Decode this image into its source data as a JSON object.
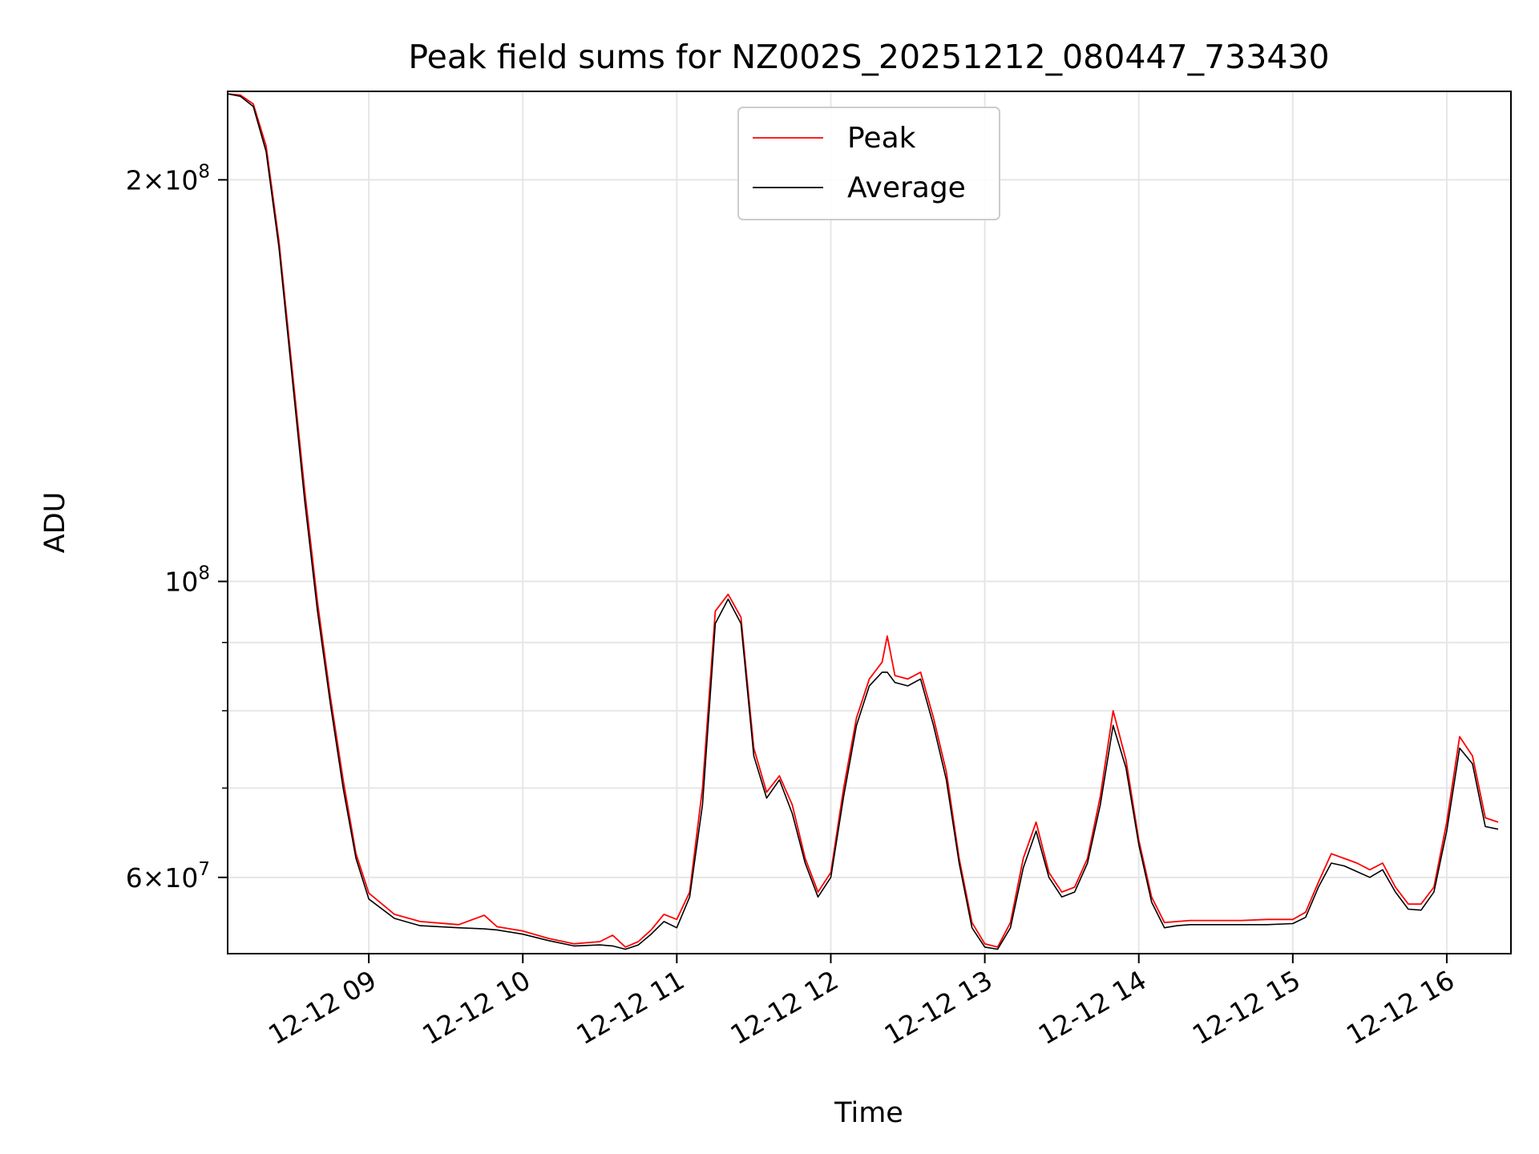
{
  "chart_data": {
    "type": "line",
    "title": "Peak field sums for NZ002S_20251212_080447_733430",
    "xlabel": "Time",
    "ylabel": "ADU",
    "y_scale": "log",
    "x_range": [
      "2025-12-12 08:05",
      "2025-12-12 16:25"
    ],
    "ylim": [
      52600000,
      233000000
    ],
    "grid": true,
    "legend_position": "upper-center",
    "x_ticks": [
      {
        "value": "2025-12-12 09:00",
        "label": "12-12 09"
      },
      {
        "value": "2025-12-12 10:00",
        "label": "12-12 10"
      },
      {
        "value": "2025-12-12 11:00",
        "label": "12-12 11"
      },
      {
        "value": "2025-12-12 12:00",
        "label": "12-12 12"
      },
      {
        "value": "2025-12-12 13:00",
        "label": "12-12 13"
      },
      {
        "value": "2025-12-12 14:00",
        "label": "12-12 14"
      },
      {
        "value": "2025-12-12 15:00",
        "label": "12-12 15"
      },
      {
        "value": "2025-12-12 16:00",
        "label": "12-12 16"
      }
    ],
    "y_major_ticks": [
      {
        "value": 200000000,
        "base": "2",
        "exp": "8"
      },
      {
        "value": 100000000,
        "base": "",
        "exp": "8"
      },
      {
        "value": 60000000,
        "base": "6",
        "exp": "7"
      }
    ],
    "y_minor_ticks": [
      70000000,
      80000000,
      90000000
    ],
    "series": [
      {
        "name": "Peak",
        "color": "#ff0000",
        "points": [
          [
            "2025-12-12 08:05",
            232000000
          ],
          [
            "2025-12-12 08:10",
            231500000
          ],
          [
            "2025-12-12 08:15",
            228000000
          ],
          [
            "2025-12-12 08:20",
            212000000
          ],
          [
            "2025-12-12 08:25",
            180000000
          ],
          [
            "2025-12-12 08:30",
            145000000
          ],
          [
            "2025-12-12 08:35",
            117000000
          ],
          [
            "2025-12-12 08:40",
            96500000
          ],
          [
            "2025-12-12 08:45",
            82000000
          ],
          [
            "2025-12-12 08:50",
            71000000
          ],
          [
            "2025-12-12 08:55",
            62500000
          ],
          [
            "2025-12-12 09:00",
            58400000
          ],
          [
            "2025-12-12 09:10",
            56300000
          ],
          [
            "2025-12-12 09:20",
            55600000
          ],
          [
            "2025-12-12 09:35",
            55300000
          ],
          [
            "2025-12-12 09:45",
            56200000
          ],
          [
            "2025-12-12 09:50",
            55100000
          ],
          [
            "2025-12-12 10:00",
            54700000
          ],
          [
            "2025-12-12 10:10",
            54000000
          ],
          [
            "2025-12-12 10:20",
            53500000
          ],
          [
            "2025-12-12 10:30",
            53700000
          ],
          [
            "2025-12-12 10:35",
            54300000
          ],
          [
            "2025-12-12 10:40",
            53200000
          ],
          [
            "2025-12-12 10:45",
            53700000
          ],
          [
            "2025-12-12 10:50",
            54800000
          ],
          [
            "2025-12-12 10:55",
            56300000
          ],
          [
            "2025-12-12 11:00",
            55800000
          ],
          [
            "2025-12-12 11:05",
            58500000
          ],
          [
            "2025-12-12 11:10",
            70000000
          ],
          [
            "2025-12-12 11:15",
            95000000
          ],
          [
            "2025-12-12 11:20",
            97800000
          ],
          [
            "2025-12-12 11:25",
            94000000
          ],
          [
            "2025-12-12 11:30",
            75000000
          ],
          [
            "2025-12-12 11:35",
            69500000
          ],
          [
            "2025-12-12 11:40",
            71500000
          ],
          [
            "2025-12-12 11:45",
            68000000
          ],
          [
            "2025-12-12 11:50",
            62000000
          ],
          [
            "2025-12-12 11:55",
            58500000
          ],
          [
            "2025-12-12 12:00",
            60500000
          ],
          [
            "2025-12-12 12:05",
            70000000
          ],
          [
            "2025-12-12 12:10",
            79000000
          ],
          [
            "2025-12-12 12:15",
            84500000
          ],
          [
            "2025-12-12 12:20",
            87000000
          ],
          [
            "2025-12-12 12:22",
            91000000
          ],
          [
            "2025-12-12 12:25",
            85000000
          ],
          [
            "2025-12-12 12:30",
            84500000
          ],
          [
            "2025-12-12 12:35",
            85500000
          ],
          [
            "2025-12-12 12:40",
            79000000
          ],
          [
            "2025-12-12 12:45",
            72000000
          ],
          [
            "2025-12-12 12:50",
            62000000
          ],
          [
            "2025-12-12 12:55",
            55500000
          ],
          [
            "2025-12-12 13:00",
            53500000
          ],
          [
            "2025-12-12 13:05",
            53200000
          ],
          [
            "2025-12-12 13:10",
            55500000
          ],
          [
            "2025-12-12 13:15",
            62000000
          ],
          [
            "2025-12-12 13:20",
            66000000
          ],
          [
            "2025-12-12 13:25",
            60500000
          ],
          [
            "2025-12-12 13:30",
            58500000
          ],
          [
            "2025-12-12 13:35",
            59000000
          ],
          [
            "2025-12-12 13:40",
            62000000
          ],
          [
            "2025-12-12 13:45",
            69000000
          ],
          [
            "2025-12-12 13:50",
            80000000
          ],
          [
            "2025-12-12 13:55",
            73500000
          ],
          [
            "2025-12-12 14:00",
            64000000
          ],
          [
            "2025-12-12 14:05",
            58000000
          ],
          [
            "2025-12-12 14:10",
            55500000
          ],
          [
            "2025-12-12 14:15",
            55600000
          ],
          [
            "2025-12-12 14:20",
            55700000
          ],
          [
            "2025-12-12 14:30",
            55700000
          ],
          [
            "2025-12-12 14:40",
            55700000
          ],
          [
            "2025-12-12 14:50",
            55800000
          ],
          [
            "2025-12-12 15:00",
            55800000
          ],
          [
            "2025-12-12 15:05",
            56500000
          ],
          [
            "2025-12-12 15:10",
            59500000
          ],
          [
            "2025-12-12 15:15",
            62500000
          ],
          [
            "2025-12-12 15:20",
            62000000
          ],
          [
            "2025-12-12 15:25",
            61500000
          ],
          [
            "2025-12-12 15:30",
            60800000
          ],
          [
            "2025-12-12 15:35",
            61500000
          ],
          [
            "2025-12-12 15:40",
            59000000
          ],
          [
            "2025-12-12 15:45",
            57300000
          ],
          [
            "2025-12-12 15:50",
            57300000
          ],
          [
            "2025-12-12 15:55",
            59000000
          ],
          [
            "2025-12-12 16:00",
            66000000
          ],
          [
            "2025-12-12 16:05",
            76500000
          ],
          [
            "2025-12-12 16:10",
            74000000
          ],
          [
            "2025-12-12 16:15",
            66500000
          ],
          [
            "2025-12-12 16:20",
            66000000
          ]
        ]
      },
      {
        "name": "Average",
        "color": "#000000",
        "points": [
          [
            "2025-12-12 08:05",
            232000000
          ],
          [
            "2025-12-12 08:10",
            231000000
          ],
          [
            "2025-12-12 08:15",
            227000000
          ],
          [
            "2025-12-12 08:20",
            210000000
          ],
          [
            "2025-12-12 08:25",
            178000000
          ],
          [
            "2025-12-12 08:30",
            143000000
          ],
          [
            "2025-12-12 08:35",
            115000000
          ],
          [
            "2025-12-12 08:40",
            95000000
          ],
          [
            "2025-12-12 08:45",
            81000000
          ],
          [
            "2025-12-12 08:50",
            70000000
          ],
          [
            "2025-12-12 08:55",
            62000000
          ],
          [
            "2025-12-12 09:00",
            57800000
          ],
          [
            "2025-12-12 09:10",
            55900000
          ],
          [
            "2025-12-12 09:20",
            55200000
          ],
          [
            "2025-12-12 09:35",
            55000000
          ],
          [
            "2025-12-12 09:45",
            54900000
          ],
          [
            "2025-12-12 09:50",
            54800000
          ],
          [
            "2025-12-12 10:00",
            54400000
          ],
          [
            "2025-12-12 10:10",
            53800000
          ],
          [
            "2025-12-12 10:20",
            53300000
          ],
          [
            "2025-12-12 10:30",
            53400000
          ],
          [
            "2025-12-12 10:35",
            53300000
          ],
          [
            "2025-12-12 10:40",
            53000000
          ],
          [
            "2025-12-12 10:45",
            53400000
          ],
          [
            "2025-12-12 10:50",
            54400000
          ],
          [
            "2025-12-12 10:55",
            55600000
          ],
          [
            "2025-12-12 11:00",
            55000000
          ],
          [
            "2025-12-12 11:05",
            58000000
          ],
          [
            "2025-12-12 11:10",
            68000000
          ],
          [
            "2025-12-12 11:15",
            93000000
          ],
          [
            "2025-12-12 11:20",
            97000000
          ],
          [
            "2025-12-12 11:25",
            93000000
          ],
          [
            "2025-12-12 11:30",
            74000000
          ],
          [
            "2025-12-12 11:35",
            68800000
          ],
          [
            "2025-12-12 11:40",
            71000000
          ],
          [
            "2025-12-12 11:45",
            67000000
          ],
          [
            "2025-12-12 11:50",
            61500000
          ],
          [
            "2025-12-12 11:55",
            58000000
          ],
          [
            "2025-12-12 12:00",
            60000000
          ],
          [
            "2025-12-12 12:05",
            69000000
          ],
          [
            "2025-12-12 12:10",
            78000000
          ],
          [
            "2025-12-12 12:15",
            83500000
          ],
          [
            "2025-12-12 12:20",
            85500000
          ],
          [
            "2025-12-12 12:22",
            85500000
          ],
          [
            "2025-12-12 12:25",
            84000000
          ],
          [
            "2025-12-12 12:30",
            83500000
          ],
          [
            "2025-12-12 12:35",
            84500000
          ],
          [
            "2025-12-12 12:40",
            78000000
          ],
          [
            "2025-12-12 12:45",
            71000000
          ],
          [
            "2025-12-12 12:50",
            61500000
          ],
          [
            "2025-12-12 12:55",
            55000000
          ],
          [
            "2025-12-12 13:00",
            53200000
          ],
          [
            "2025-12-12 13:05",
            53000000
          ],
          [
            "2025-12-12 13:10",
            55000000
          ],
          [
            "2025-12-12 13:15",
            61000000
          ],
          [
            "2025-12-12 13:20",
            65000000
          ],
          [
            "2025-12-12 13:25",
            60000000
          ],
          [
            "2025-12-12 13:30",
            58000000
          ],
          [
            "2025-12-12 13:35",
            58500000
          ],
          [
            "2025-12-12 13:40",
            61500000
          ],
          [
            "2025-12-12 13:45",
            68000000
          ],
          [
            "2025-12-12 13:50",
            78000000
          ],
          [
            "2025-12-12 13:55",
            72500000
          ],
          [
            "2025-12-12 14:00",
            63500000
          ],
          [
            "2025-12-12 14:05",
            57500000
          ],
          [
            "2025-12-12 14:10",
            55000000
          ],
          [
            "2025-12-12 14:15",
            55200000
          ],
          [
            "2025-12-12 14:20",
            55300000
          ],
          [
            "2025-12-12 14:30",
            55300000
          ],
          [
            "2025-12-12 14:40",
            55300000
          ],
          [
            "2025-12-12 14:50",
            55300000
          ],
          [
            "2025-12-12 15:00",
            55400000
          ],
          [
            "2025-12-12 15:05",
            56000000
          ],
          [
            "2025-12-12 15:10",
            59000000
          ],
          [
            "2025-12-12 15:15",
            61500000
          ],
          [
            "2025-12-12 15:20",
            61200000
          ],
          [
            "2025-12-12 15:25",
            60600000
          ],
          [
            "2025-12-12 15:30",
            60000000
          ],
          [
            "2025-12-12 15:35",
            60800000
          ],
          [
            "2025-12-12 15:40",
            58500000
          ],
          [
            "2025-12-12 15:45",
            56800000
          ],
          [
            "2025-12-12 15:50",
            56700000
          ],
          [
            "2025-12-12 15:55",
            58500000
          ],
          [
            "2025-12-12 16:00",
            65000000
          ],
          [
            "2025-12-12 16:05",
            75000000
          ],
          [
            "2025-12-12 16:10",
            73000000
          ],
          [
            "2025-12-12 16:15",
            65500000
          ],
          [
            "2025-12-12 16:20",
            65200000
          ]
        ]
      }
    ]
  }
}
